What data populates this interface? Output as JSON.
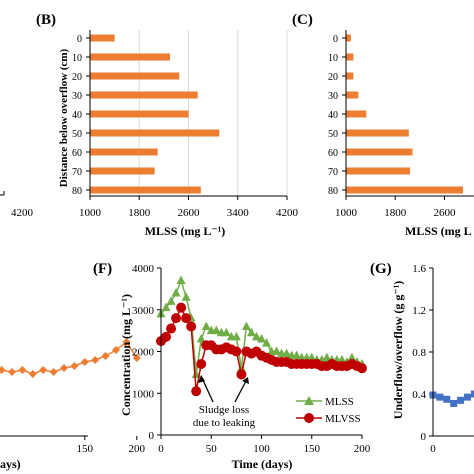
{
  "panels": {
    "A": {
      "xtick_right": "4200",
      "bottom_x_label": "ays)"
    },
    "B": {
      "letter": "(B)",
      "ylabel": "Distance below overflow (cm)",
      "xlabel": "MLSS (mg L⁻¹)",
      "xticks": [
        "1000",
        "1800",
        "2600",
        "3400",
        "4200"
      ]
    },
    "C": {
      "letter": "(C)",
      "xlabel": "MLSS (mg L",
      "xticks": [
        "1000",
        "1800",
        "2600"
      ]
    },
    "E": {
      "xticks": [
        "150",
        "200"
      ]
    },
    "F": {
      "letter": "(F)",
      "ylabel": "Concentration (mg L⁻¹)",
      "xlabel": "Time (days)",
      "annotation_line1": "Sludge loss",
      "annotation_line2": "due to leaking"
    },
    "G": {
      "letter": "(G)",
      "ylabel": "Underflow/overflow (g g⁻¹)",
      "yticks": [
        "0",
        "0.4",
        "0.8",
        "1.2",
        "1.6"
      ],
      "xticks": [
        "0"
      ]
    }
  },
  "colors": {
    "bar": "#ED7D31",
    "mlss_line": "#70AD47",
    "mlvss": "#C00000",
    "e_series": "#ED7D31",
    "g_series": "#4472C4",
    "axis": "#000000",
    "grid": "#d9d9d9"
  },
  "chart_data": [
    {
      "id": "B",
      "type": "bar",
      "orientation": "horizontal",
      "categories": [
        "0",
        "10",
        "20",
        "30",
        "40",
        "50",
        "60",
        "70",
        "80"
      ],
      "values": [
        1400,
        2300,
        2450,
        2750,
        2600,
        3100,
        2100,
        2050,
        2800
      ],
      "title": "(B)",
      "xlabel": "MLSS (mg L⁻¹)",
      "ylabel": "Distance below overflow (cm)",
      "xlim": [
        1000,
        4200
      ]
    },
    {
      "id": "C",
      "type": "bar",
      "orientation": "horizontal",
      "categories": [
        "0",
        "10",
        "20",
        "30",
        "40",
        "50",
        "60",
        "70",
        "80"
      ],
      "values": [
        1080,
        1120,
        1120,
        1200,
        1330,
        2020,
        2080,
        2040,
        2900
      ],
      "title": "(C)",
      "xlabel": "MLSS (mg L",
      "xlim": [
        1000,
        2900
      ]
    },
    {
      "id": "E",
      "type": "line",
      "xlim": [
        55,
        200
      ],
      "x": [
        70,
        80,
        90,
        100,
        110,
        120,
        130,
        140,
        150,
        160,
        170,
        180,
        190,
        200
      ],
      "series": [
        {
          "values": [
            1.1,
            1.09,
            1.1,
            1.08,
            1.1,
            1.09,
            1.11,
            1.12,
            1.14,
            1.15,
            1.17,
            1.2,
            1.24,
            1.16
          ]
        }
      ]
    },
    {
      "id": "F",
      "type": "line",
      "xlabel": "Time (days)",
      "ylabel": "Concentration (mg L⁻¹)",
      "xlim": [
        0,
        200
      ],
      "ylim": [
        0,
        4000
      ],
      "yticks": [
        0,
        1000,
        2000,
        3000,
        4000
      ],
      "xticks": [
        0,
        50,
        100,
        150,
        200
      ],
      "series": [
        {
          "name": "MLSS",
          "marker": "triangle",
          "x": [
            0,
            5,
            10,
            15,
            20,
            25,
            30,
            35,
            40,
            45,
            50,
            55,
            60,
            65,
            70,
            75,
            80,
            85,
            90,
            95,
            100,
            105,
            110,
            115,
            120,
            125,
            130,
            135,
            140,
            145,
            150,
            155,
            160,
            165,
            170,
            175,
            180,
            185,
            190,
            195,
            200
          ],
          "values": [
            2900,
            3050,
            3200,
            3400,
            3700,
            3300,
            2800,
            1450,
            2300,
            2600,
            2500,
            2500,
            2450,
            2450,
            2350,
            2350,
            1600,
            2600,
            2450,
            2350,
            2300,
            2200,
            2000,
            2000,
            1950,
            1950,
            1900,
            1900,
            1850,
            1850,
            1850,
            1800,
            1800,
            1850,
            1800,
            1800,
            1800,
            1750,
            1850,
            1750,
            1700
          ]
        },
        {
          "name": "MLVSS",
          "marker": "circle",
          "x": [
            0,
            5,
            10,
            15,
            20,
            25,
            30,
            35,
            40,
            45,
            50,
            55,
            60,
            65,
            70,
            75,
            80,
            85,
            90,
            95,
            100,
            105,
            110,
            115,
            120,
            125,
            130,
            135,
            140,
            145,
            150,
            155,
            160,
            165,
            170,
            175,
            180,
            185,
            190,
            195,
            200
          ],
          "values": [
            2250,
            2350,
            2550,
            2800,
            3050,
            2800,
            2600,
            1050,
            1700,
            2150,
            2150,
            2050,
            2050,
            2100,
            2050,
            2000,
            1450,
            2000,
            1950,
            2000,
            1900,
            1850,
            1800,
            1750,
            1750,
            1750,
            1700,
            1700,
            1700,
            1700,
            1700,
            1700,
            1650,
            1650,
            1700,
            1650,
            1650,
            1650,
            1700,
            1650,
            1600
          ]
        }
      ]
    },
    {
      "id": "G",
      "type": "line",
      "ylabel": "Underflow/overflow (g g⁻¹)",
      "xlim": [
        0,
        20
      ],
      "ylim": [
        0,
        1.6
      ],
      "series": [
        {
          "x": [
            0,
            3,
            6,
            9,
            12,
            15,
            18
          ],
          "values": [
            0.39,
            0.37,
            0.35,
            0.31,
            0.34,
            0.37,
            0.4
          ]
        }
      ]
    }
  ]
}
